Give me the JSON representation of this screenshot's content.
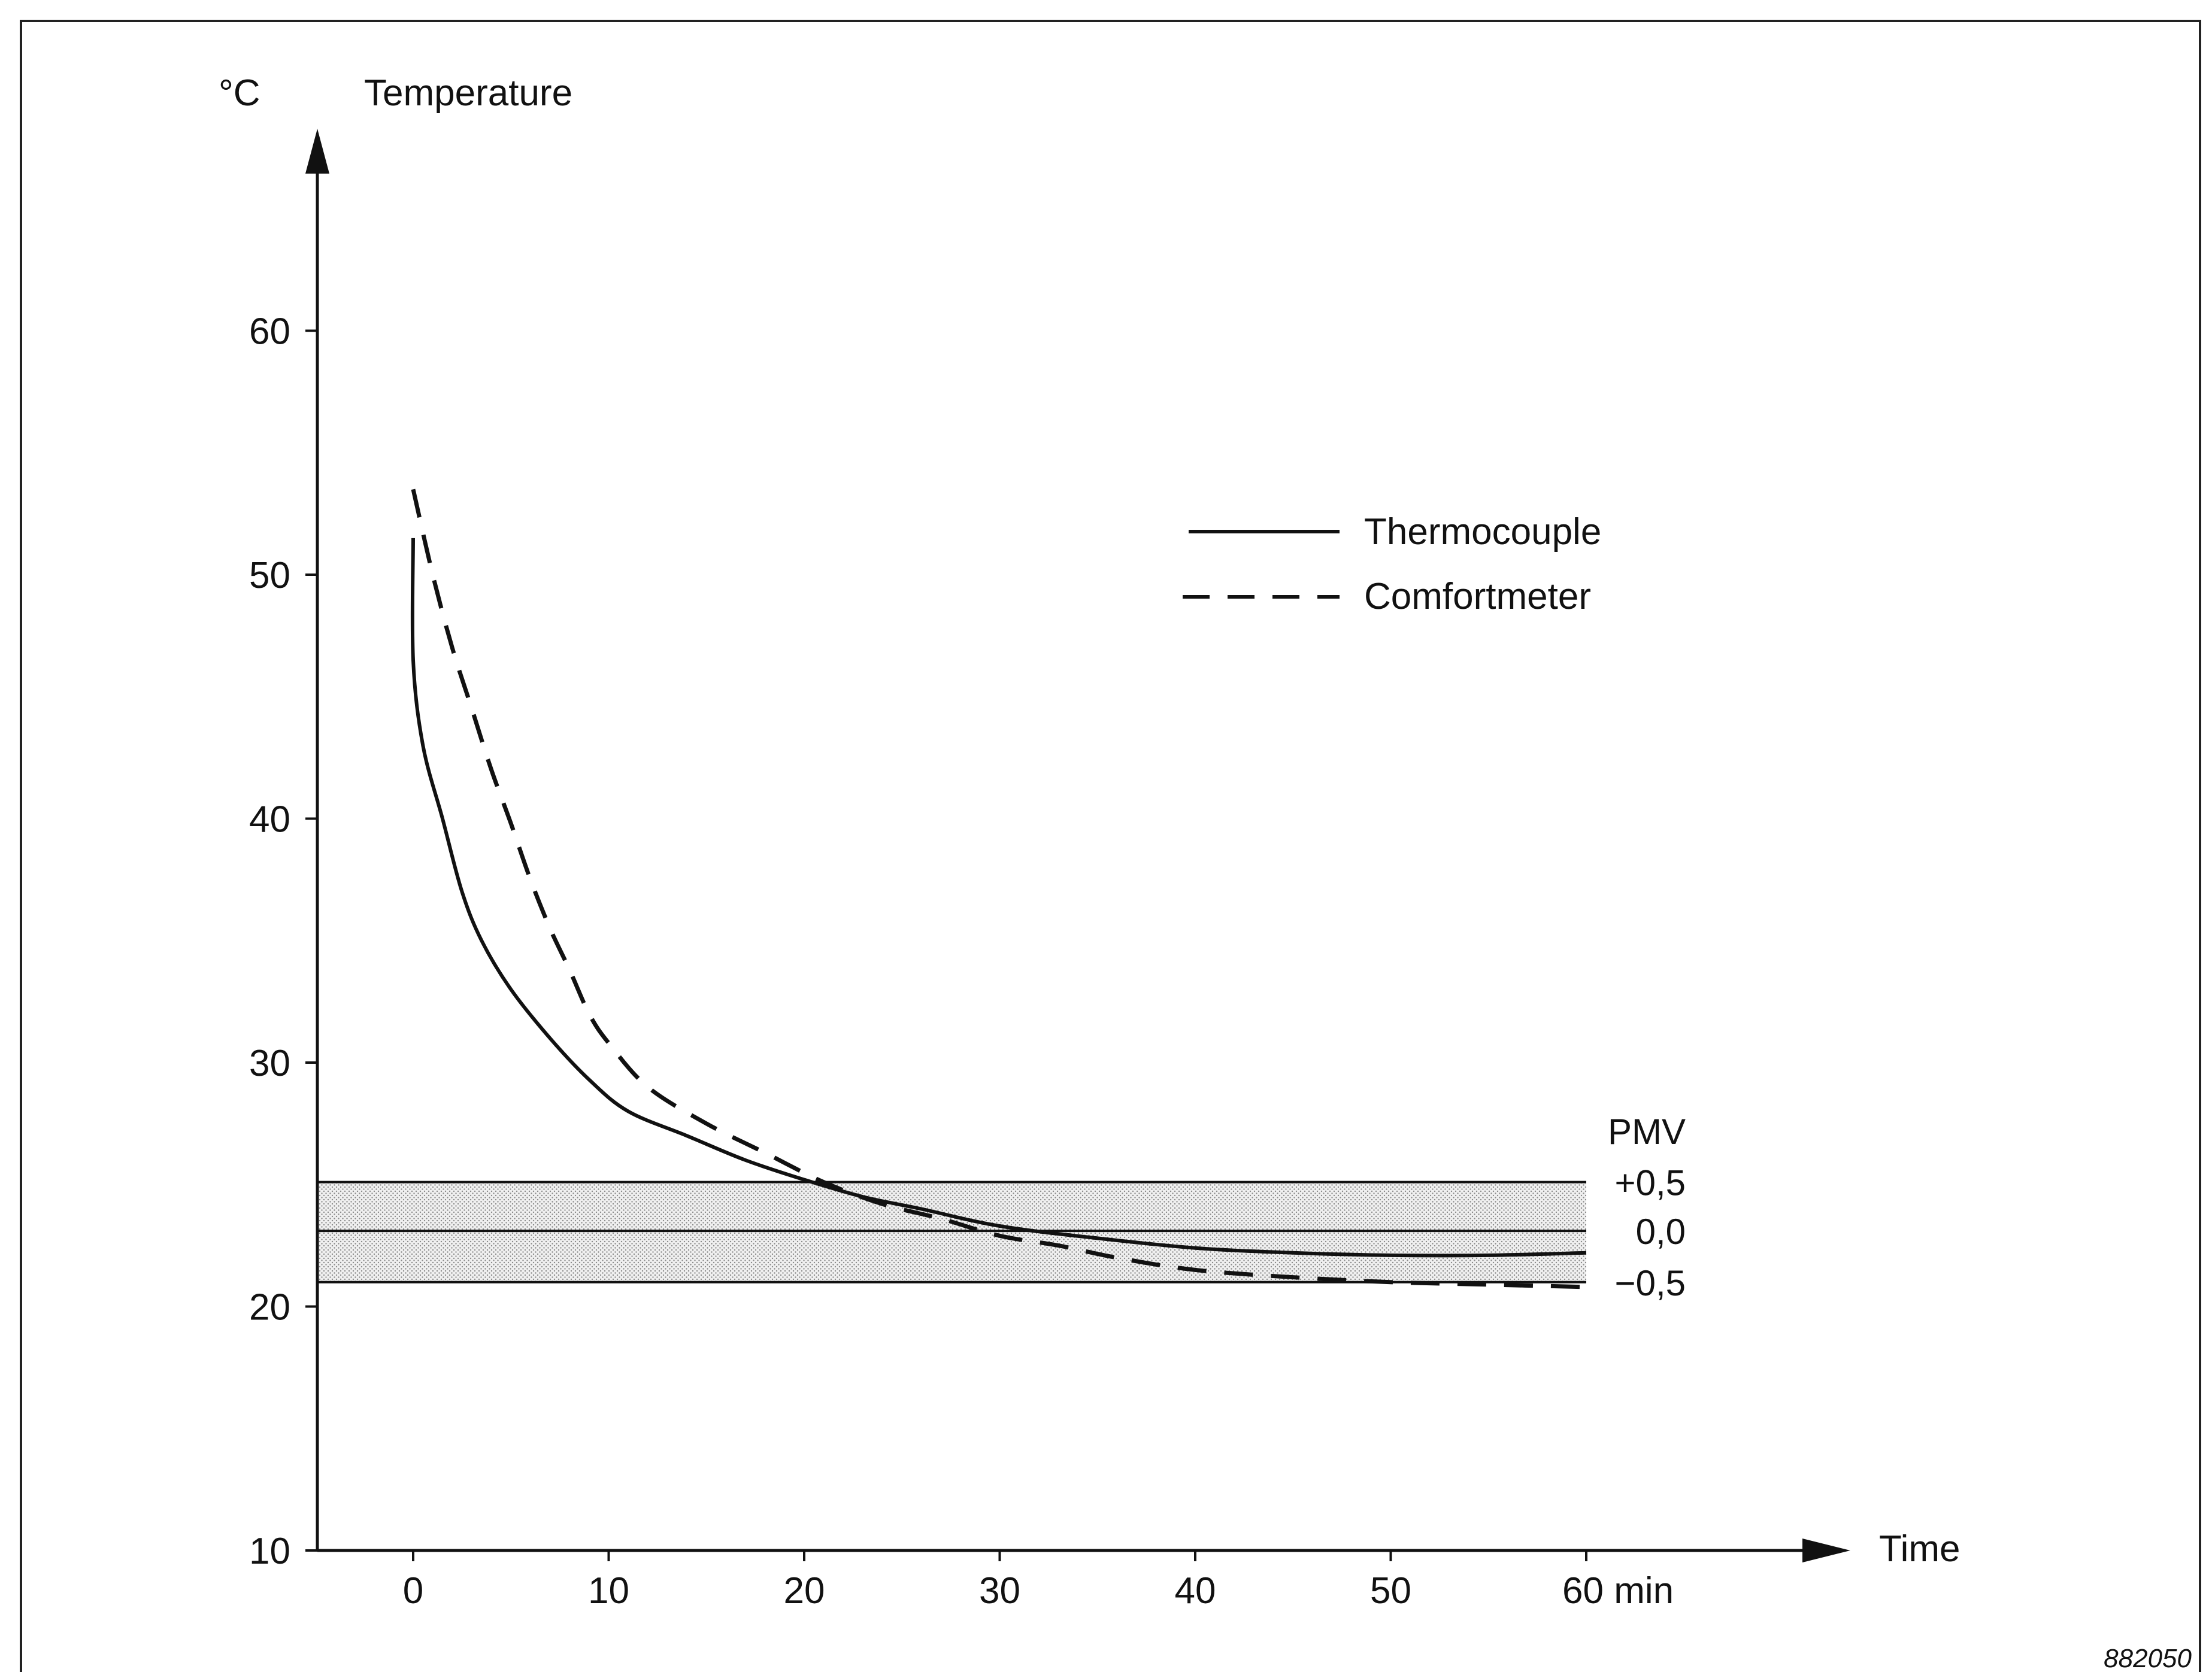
{
  "figure_id": "882050",
  "chart_data": {
    "type": "line",
    "ylabel": "Temperature",
    "y_unit": "°C",
    "xlabel": "Time",
    "x_unit": "min",
    "xlim": [
      -5,
      60
    ],
    "ylim": [
      10,
      65
    ],
    "x_ticks": [
      {
        "value": 0,
        "label": "0"
      },
      {
        "value": 10,
        "label": "10"
      },
      {
        "value": 20,
        "label": "20"
      },
      {
        "value": 30,
        "label": "30"
      },
      {
        "value": 40,
        "label": "40"
      },
      {
        "value": 50,
        "label": "50"
      },
      {
        "value": 60,
        "label": "60 min"
      }
    ],
    "y_ticks": [
      {
        "value": 10,
        "label": "10"
      },
      {
        "value": 20,
        "label": "20"
      },
      {
        "value": 30,
        "label": "30"
      },
      {
        "value": 40,
        "label": "40"
      },
      {
        "value": 50,
        "label": "50"
      },
      {
        "value": 60,
        "label": "60"
      }
    ],
    "grid": false,
    "legend_position": "upper-right",
    "pmv_band": {
      "title": "PMV",
      "lines": [
        {
          "label": "+0,5",
          "y": 25.1
        },
        {
          "label": "0,0",
          "y": 23.1
        },
        {
          "label": "−0,5",
          "y": 21.0
        }
      ]
    },
    "series": [
      {
        "name": "Thermocouple",
        "style": "solid",
        "points": [
          [
            0,
            51.5
          ],
          [
            0,
            46.5
          ],
          [
            0.5,
            43
          ],
          [
            1.5,
            40
          ],
          [
            2.5,
            37
          ],
          [
            3.5,
            35
          ],
          [
            5,
            33
          ],
          [
            7,
            31
          ],
          [
            9,
            29.3
          ],
          [
            11,
            28
          ],
          [
            14,
            27
          ],
          [
            17,
            26
          ],
          [
            20,
            25.2
          ],
          [
            23,
            24.5
          ],
          [
            26,
            24
          ],
          [
            30,
            23.3
          ],
          [
            35,
            22.8
          ],
          [
            40,
            22.4
          ],
          [
            45,
            22.2
          ],
          [
            50,
            22.1
          ],
          [
            55,
            22.1
          ],
          [
            60,
            22.2
          ]
        ]
      },
      {
        "name": "Comfortmeter",
        "style": "dashed",
        "points": [
          [
            0,
            53.5
          ],
          [
            1,
            50
          ],
          [
            2,
            47
          ],
          [
            3,
            44.5
          ],
          [
            4,
            42
          ],
          [
            5,
            39.8
          ],
          [
            6,
            37.5
          ],
          [
            7,
            35.5
          ],
          [
            8,
            33.8
          ],
          [
            9,
            32
          ],
          [
            10,
            30.8
          ],
          [
            12,
            29
          ],
          [
            15,
            27.5
          ],
          [
            18,
            26.3
          ],
          [
            21,
            25.1
          ],
          [
            24,
            24.2
          ],
          [
            27,
            23.6
          ],
          [
            30,
            22.9
          ],
          [
            33,
            22.5
          ],
          [
            36,
            22
          ],
          [
            40,
            21.5
          ],
          [
            45,
            21.2
          ],
          [
            50,
            21
          ],
          [
            55,
            20.9
          ],
          [
            60,
            20.8
          ]
        ]
      }
    ]
  }
}
